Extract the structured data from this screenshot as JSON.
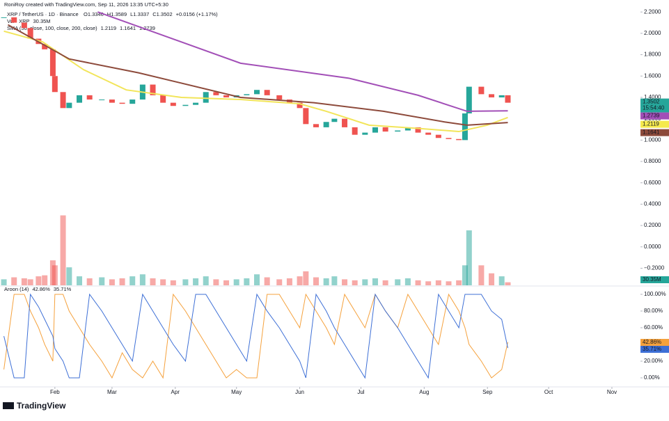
{
  "header": {
    "credit": "RoniRoy created with TradingView.com, Sep 11, 2026 13:35 UTC+5:30",
    "symbol": "XRP / TetherUS · 1D · Binance",
    "ohlc": [
      "O1.3346",
      "H1.3589",
      "L1.3337",
      "C1.3502",
      "+0.0156 (+1.17%)"
    ],
    "vol_label": "Vol · XRP",
    "sma_label": "SMA (50, close, 100, close, 200, close)",
    "aroon_label": "Aroon (14)",
    "timer": "15:54:40",
    "logo": "TradingView"
  },
  "chart_data": {
    "type": "candlestick",
    "up_color": "#26a69a",
    "down_color": "#ef5350",
    "x": [
      6,
      11,
      16,
      19,
      23,
      26,
      30,
      31,
      35,
      38,
      43,
      48,
      54,
      59,
      64,
      69,
      74,
      79,
      84,
      89,
      95,
      100,
      105,
      110,
      115,
      120,
      125,
      130,
      135,
      141,
      146,
      151,
      154,
      159,
      164,
      168,
      173,
      178,
      183,
      188,
      193,
      199,
      204,
      209,
      214,
      219,
      224,
      229,
      232,
      234,
      240,
      245,
      250,
      253
    ],
    "values": [
      2.15,
      2.1,
      2.05,
      1.95,
      1.9,
      1.85,
      1.6,
      1.45,
      1.3,
      1.35,
      1.42,
      1.38,
      1.38,
      1.35,
      1.34,
      1.38,
      1.52,
      1.42,
      1.35,
      1.32,
      1.33,
      1.35,
      1.45,
      1.42,
      1.4,
      1.42,
      1.43,
      1.47,
      1.42,
      1.38,
      1.35,
      1.3,
      1.15,
      1.12,
      1.17,
      1.2,
      1.12,
      1.05,
      1.07,
      1.12,
      1.08,
      1.09,
      1.12,
      1.07,
      1.05,
      1.02,
      1.01,
      1.0,
      1.25,
      1.5,
      1.43,
      1.4,
      1.42,
      1.3502
    ],
    "xlim": [
      4.1,
      318
    ],
    "xticks": [
      {
        "value": 31,
        "label": "Feb"
      },
      {
        "value": 59,
        "label": "Mar"
      },
      {
        "value": 90,
        "label": "Apr"
      },
      {
        "value": 120,
        "label": "May"
      },
      {
        "value": 151,
        "label": "Jun"
      },
      {
        "value": 181,
        "label": "Jul"
      },
      {
        "value": 212,
        "label": "Aug"
      },
      {
        "value": 243,
        "label": "Sep"
      },
      {
        "value": 273,
        "label": "Oct"
      },
      {
        "value": 304,
        "label": "Nov"
      }
    ],
    "ylim": [
      -0.36,
      2.26
    ],
    "yticks": [
      {
        "value": 2.2,
        "label": "2.2000"
      },
      {
        "value": 2,
        "label": "2.0000"
      },
      {
        "value": 1.8,
        "label": "1.8000"
      },
      {
        "value": 1.6,
        "label": "1.6000"
      },
      {
        "value": 1.4,
        "label": "1.4000"
      },
      {
        "value": 1.2,
        "label": "1.2000"
      },
      {
        "value": 1,
        "label": "1.0000"
      },
      {
        "value": 0.8,
        "label": "0.8000"
      },
      {
        "value": 0.6,
        "label": "0.6000"
      },
      {
        "value": 0.4,
        "label": "0.4000"
      },
      {
        "value": 0.2,
        "label": "0.2000"
      },
      {
        "value": 0,
        "label": "0.0000"
      },
      {
        "value": -0.2,
        "label": "−0.2000"
      }
    ],
    "overlays": [
      {
        "color": "#f2e55a",
        "x": [
          6,
          25,
          45,
          66,
          93,
          122,
          151,
          164,
          185,
          209,
          229,
          243,
          253
        ],
        "values": [
          2.02,
          1.92,
          1.66,
          1.47,
          1.4,
          1.38,
          1.34,
          1.27,
          1.14,
          1.11,
          1.08,
          1.14,
          1.2119
        ]
      },
      {
        "color": "#8d4a3b",
        "x": [
          8,
          38,
          72,
          122,
          158,
          192,
          222,
          233,
          253
        ],
        "values": [
          2.08,
          1.76,
          1.63,
          1.4,
          1.35,
          1.27,
          1.17,
          1.14,
          1.1641
        ]
      },
      {
        "color": "#a24fb7",
        "x": [
          52,
          122,
          175,
          209,
          233,
          253
        ],
        "values": [
          2.2,
          1.72,
          1.58,
          1.42,
          1.27,
          1.2739
        ]
      }
    ],
    "volume": {
      "values": [
        60,
        80,
        70,
        60,
        90,
        100,
        250,
        200,
        700,
        180,
        90,
        70,
        80,
        60,
        70,
        90,
        110,
        70,
        60,
        50,
        60,
        70,
        90,
        60,
        50,
        60,
        70,
        110,
        80,
        60,
        70,
        90,
        140,
        80,
        70,
        90,
        60,
        50,
        60,
        70,
        50,
        60,
        70,
        50,
        40,
        50,
        40,
        50,
        200,
        550,
        200,
        120,
        90,
        30.35
      ],
      "value_labels": {
        "53": "30.35M"
      },
      "vlim": [
        0,
        2800
      ]
    },
    "aroon": {
      "ylim": [
        -10,
        108.3
      ],
      "yticks": [
        {
          "value": 100,
          "label": "100.00%"
        },
        {
          "value": 80,
          "label": "80.00%"
        },
        {
          "value": 60,
          "label": "60.00%"
        },
        {
          "value": 40,
          "label": "40.00%"
        },
        {
          "value": 20,
          "label": "20.00%"
        },
        {
          "value": 0,
          "label": "0.00%"
        }
      ],
      "series": [
        {
          "color": "#f5a13c",
          "values": [
            10,
            100,
            100,
            80,
            60,
            40,
            20,
            100,
            100,
            80,
            60,
            40,
            20,
            0,
            30,
            10,
            0,
            20,
            0,
            100,
            80,
            60,
            40,
            20,
            0,
            10,
            0,
            0,
            100,
            100,
            80,
            60,
            100,
            80,
            60,
            40,
            100,
            80,
            60,
            100,
            80,
            60,
            100,
            80,
            60,
            40,
            100,
            80,
            60,
            40,
            20,
            0,
            10,
            42.86
          ],
          "value_labels": {
            "53": "42.86%"
          }
        },
        {
          "color": "#3d6fd6",
          "values": [
            50,
            0,
            0,
            100,
            85,
            70,
            50,
            35,
            20,
            0,
            0,
            100,
            80,
            60,
            40,
            20,
            100,
            80,
            60,
            40,
            20,
            100,
            100,
            80,
            60,
            40,
            20,
            100,
            80,
            60,
            40,
            20,
            0,
            100,
            80,
            60,
            40,
            20,
            0,
            100,
            80,
            60,
            40,
            20,
            0,
            100,
            80,
            60,
            100,
            100,
            100,
            80,
            70,
            35.71
          ],
          "value_labels": {
            "53": "35.71%"
          }
        }
      ]
    }
  }
}
